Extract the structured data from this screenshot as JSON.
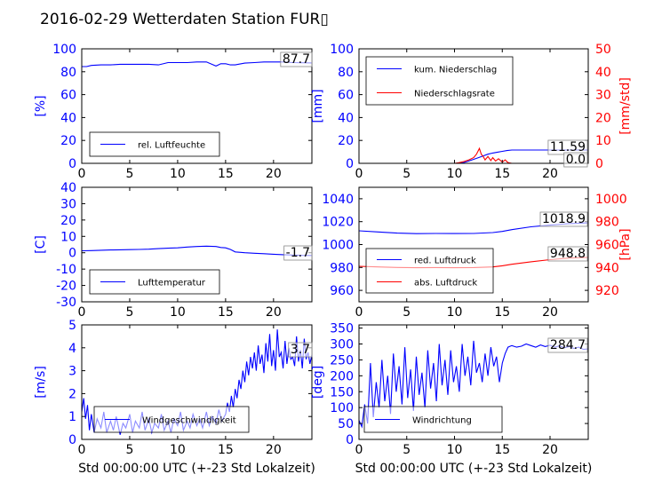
{
  "title": "2016-02-29 Wetterdaten Station FUR▯",
  "colors": {
    "primary": "#0000ff",
    "secondary": "#ff0000",
    "axis": "#000000",
    "box": "#888888"
  },
  "chart_data": [
    {
      "type": "line",
      "ylabel": "[%]",
      "xlabel": "",
      "xlim": [
        0,
        24
      ],
      "ylim": [
        0,
        100
      ],
      "xticks": [
        0,
        5,
        10,
        15,
        20
      ],
      "yticks": [
        0,
        20,
        40,
        60,
        80,
        100
      ],
      "legend_position": "lower-left",
      "series": [
        {
          "name": "rel. Luftfeuchte",
          "color": "#0000ff",
          "x": [
            0,
            0.5,
            1,
            2,
            3,
            4,
            5,
            6,
            7,
            8,
            9,
            10,
            11,
            12,
            13,
            14,
            14.5,
            15,
            15.5,
            16,
            17,
            18,
            19,
            20,
            21,
            22,
            23,
            24
          ],
          "y": [
            84.5,
            84.5,
            85.5,
            86,
            86,
            86.5,
            86.5,
            86.5,
            86.5,
            86,
            88,
            88,
            88,
            88.5,
            88.5,
            85,
            87,
            87,
            86,
            86,
            87.5,
            88,
            88.5,
            88.5,
            88.5,
            88,
            87.8,
            87.7
          ]
        }
      ],
      "annotation": "87.7"
    },
    {
      "type": "line",
      "ylabel": "[mm]",
      "ylabel_right": "[mm/std]",
      "xlabel": "",
      "xlim": [
        0,
        24
      ],
      "ylim": [
        0,
        100
      ],
      "ylim_right": [
        0,
        50
      ],
      "xticks": [
        0,
        5,
        10,
        15,
        20
      ],
      "yticks": [
        0,
        20,
        40,
        60,
        80,
        100
      ],
      "yticks_right": [
        0,
        10,
        20,
        30,
        40,
        50
      ],
      "legend_position": "upper-left",
      "series": [
        {
          "name": "kum. Niederschlag",
          "color": "#0000ff",
          "axis": "left",
          "x": [
            0,
            10.5,
            11,
            11.5,
            12,
            12.5,
            13,
            13.5,
            14,
            14.5,
            15,
            15.5,
            16,
            18,
            20,
            22,
            24
          ],
          "y": [
            0,
            0,
            0.8,
            2,
            3.5,
            5,
            6.5,
            8,
            9,
            9.8,
            10.5,
            11.2,
            11.59,
            11.59,
            11.59,
            11.59,
            11.59
          ]
        },
        {
          "name": "Niederschlagsrate",
          "color": "#ff0000",
          "axis": "right",
          "x": [
            0,
            10,
            10.5,
            11,
            11.5,
            12,
            12.3,
            12.6,
            12.8,
            13,
            13.2,
            13.5,
            13.8,
            14,
            14.3,
            14.6,
            15,
            15.3,
            15.6,
            16,
            18,
            20,
            22,
            24
          ],
          "y": [
            0,
            0,
            0.3,
            0.8,
            1.5,
            2.5,
            4,
            6.5,
            4,
            3,
            1.5,
            3,
            1.2,
            2.5,
            1,
            2,
            0.5,
            1.5,
            0.3,
            0,
            0,
            0,
            0,
            0
          ]
        }
      ],
      "annotations": [
        "11.59",
        "0.0"
      ]
    },
    {
      "type": "line",
      "ylabel": "[C]",
      "xlabel": "",
      "xlim": [
        0,
        24
      ],
      "ylim": [
        -30,
        40
      ],
      "xticks": [
        0,
        5,
        10,
        15,
        20
      ],
      "yticks": [
        -30,
        -20,
        -10,
        0,
        10,
        20,
        30,
        40
      ],
      "legend_position": "lower-left",
      "series": [
        {
          "name": "Lufttemperatur",
          "color": "#0000ff",
          "x": [
            0,
            1,
            2,
            3,
            4,
            5,
            6,
            7,
            8,
            9,
            10,
            11,
            12,
            13,
            14,
            14.5,
            15,
            15.5,
            16,
            17,
            18,
            19,
            20,
            21,
            22,
            23,
            24
          ],
          "y": [
            1.2,
            1.3,
            1.5,
            1.7,
            1.8,
            1.9,
            2,
            2.2,
            2.5,
            2.8,
            3,
            3.5,
            3.8,
            4,
            3.8,
            3.2,
            3,
            2,
            0.5,
            0,
            -0.3,
            -0.6,
            -0.9,
            -1.2,
            -1.4,
            -1.6,
            -1.7
          ]
        }
      ],
      "annotation": "-1.7"
    },
    {
      "type": "line",
      "ylabel": "",
      "ylabel_right": "[hPa]",
      "xlabel": "",
      "xlim": [
        0,
        24
      ],
      "ylim": [
        950,
        1050
      ],
      "ylim_right": [
        910,
        1010
      ],
      "xticks": [
        0,
        5,
        10,
        15,
        20
      ],
      "yticks": [
        960,
        980,
        1000,
        1020,
        1040
      ],
      "yticks_right": [
        920,
        940,
        960,
        980,
        1000
      ],
      "legend_position": "lower-left",
      "series": [
        {
          "name": "red. Luftdruck",
          "color": "#0000ff",
          "axis": "left",
          "x": [
            0,
            2,
            4,
            6,
            8,
            10,
            12,
            14,
            15,
            16,
            18,
            20,
            22,
            24
          ],
          "y": [
            1012,
            1011,
            1010,
            1009.5,
            1009.7,
            1009.6,
            1009.7,
            1010.5,
            1011.5,
            1013,
            1015.5,
            1017,
            1018.3,
            1018.9
          ]
        },
        {
          "name": "abs. Luftdruck",
          "color": "#ff0000",
          "axis": "right",
          "x": [
            0,
            2,
            4,
            6,
            8,
            10,
            12,
            14,
            15,
            16,
            18,
            20,
            22,
            24
          ],
          "y": [
            941,
            940.5,
            940,
            939.8,
            939.9,
            939.8,
            939.9,
            940.5,
            941.5,
            942.8,
            945,
            946.8,
            948.2,
            948.8
          ]
        }
      ],
      "annotations": [
        "1018.9",
        "948.8"
      ]
    },
    {
      "type": "line",
      "ylabel": "[m/s]",
      "xlabel": "Std 00:00:00 UTC (+-23 Std Lokalzeit)",
      "xlim": [
        0,
        24
      ],
      "ylim": [
        0,
        5
      ],
      "xticks": [
        0,
        5,
        10,
        15,
        20
      ],
      "yticks": [
        0,
        1,
        2,
        3,
        4,
        5
      ],
      "legend_position": "lower-left",
      "series": [
        {
          "name": "Windgeschwindigkeit",
          "color": "#0000ff",
          "x": [
            0,
            0.2,
            0.4,
            0.6,
            0.8,
            1,
            1.3,
            1.6,
            2,
            2.3,
            2.6,
            3,
            3.3,
            3.6,
            4,
            4.3,
            4.6,
            5,
            5.3,
            5.6,
            6,
            6.3,
            6.6,
            7,
            7.3,
            7.6,
            8,
            8.3,
            8.6,
            9,
            9.3,
            9.6,
            10,
            10.3,
            10.6,
            11,
            11.3,
            11.6,
            12,
            12.3,
            12.6,
            13,
            13.3,
            13.6,
            14,
            14.3,
            14.6,
            15,
            15.2,
            15.4,
            15.6,
            15.8,
            16,
            16.2,
            16.4,
            16.6,
            16.8,
            17,
            17.2,
            17.4,
            17.6,
            17.8,
            18,
            18.2,
            18.4,
            18.6,
            18.8,
            19,
            19.2,
            19.4,
            19.6,
            19.8,
            20,
            20.2,
            20.4,
            20.6,
            20.8,
            21,
            21.2,
            21.4,
            21.6,
            21.8,
            22,
            22.2,
            22.4,
            22.6,
            22.8,
            23,
            23.2,
            23.4,
            23.6,
            23.8,
            24
          ],
          "y": [
            1.2,
            1.8,
            0.9,
            1.5,
            0.4,
            1.1,
            0.3,
            0.9,
            0.5,
            1.2,
            0.3,
            0.8,
            0.4,
            1,
            0.2,
            0.7,
            0.5,
            1.1,
            0.3,
            0.8,
            0.5,
            1.2,
            0.4,
            0.9,
            0.3,
            0.7,
            0.5,
            1.1,
            0.4,
            0.8,
            0.3,
            0.9,
            0.6,
            1.2,
            0.4,
            0.8,
            0.5,
            1.1,
            0.6,
            0.9,
            0.5,
            1.2,
            0.6,
            1,
            0.7,
            1.3,
            0.8,
            1.1,
            1.6,
            1.2,
            1.9,
            1.4,
            2.2,
            1.8,
            2.6,
            2.2,
            3,
            2.5,
            3.4,
            2.8,
            3.6,
            3.1,
            3.8,
            3,
            4.1,
            3.3,
            3.7,
            2.9,
            4.2,
            3.4,
            4.6,
            3.2,
            3.9,
            3,
            4.8,
            3.6,
            3.8,
            3.1,
            4.3,
            3.3,
            4,
            3.5,
            3.6,
            3.2,
            4.5,
            3.4,
            3.9,
            3.1,
            4.4,
            3.5,
            3.8,
            3.3,
            3.7
          ]
        }
      ],
      "annotation": "3.7"
    },
    {
      "type": "line",
      "ylabel": "[deg]",
      "xlabel": "Std 00:00:00 UTC (+-23 Std Lokalzeit)",
      "xlim": [
        0,
        24
      ],
      "ylim": [
        0,
        360
      ],
      "xticks": [
        0,
        5,
        10,
        15,
        20
      ],
      "yticks": [
        0,
        50,
        100,
        150,
        200,
        250,
        300,
        350
      ],
      "legend_position": "lower-left",
      "series": [
        {
          "name": "Windrichtung",
          "color": "#0000ff",
          "x": [
            0,
            0.3,
            0.6,
            0.9,
            1.2,
            1.5,
            1.8,
            2.1,
            2.4,
            2.7,
            3,
            3.3,
            3.6,
            3.9,
            4.2,
            4.5,
            4.8,
            5.1,
            5.4,
            5.7,
            6,
            6.3,
            6.6,
            6.9,
            7.2,
            7.5,
            7.8,
            8.1,
            8.4,
            8.7,
            9,
            9.3,
            9.6,
            9.9,
            10.2,
            10.5,
            10.8,
            11.1,
            11.4,
            11.7,
            12,
            12.3,
            12.6,
            12.9,
            13.2,
            13.5,
            13.8,
            14.1,
            14.4,
            14.7,
            15,
            15.3,
            15.6,
            16,
            16.5,
            17,
            17.5,
            18,
            18.5,
            19,
            19.5,
            20,
            20.5,
            21,
            21.5,
            22,
            22.5,
            23,
            23.5,
            24
          ],
          "y": [
            60,
            40,
            110,
            50,
            240,
            70,
            180,
            100,
            250,
            120,
            200,
            80,
            270,
            150,
            230,
            110,
            290,
            130,
            220,
            90,
            260,
            140,
            210,
            100,
            280,
            160,
            240,
            120,
            300,
            170,
            250,
            140,
            280,
            180,
            230,
            150,
            300,
            200,
            260,
            170,
            310,
            210,
            240,
            180,
            270,
            200,
            290,
            230,
            260,
            180,
            240,
            270,
            290,
            295,
            290,
            293,
            300,
            295,
            290,
            297,
            292,
            296,
            290,
            294,
            288,
            292,
            286,
            290,
            283,
            284.7
          ]
        }
      ],
      "annotation": "284.7"
    }
  ]
}
